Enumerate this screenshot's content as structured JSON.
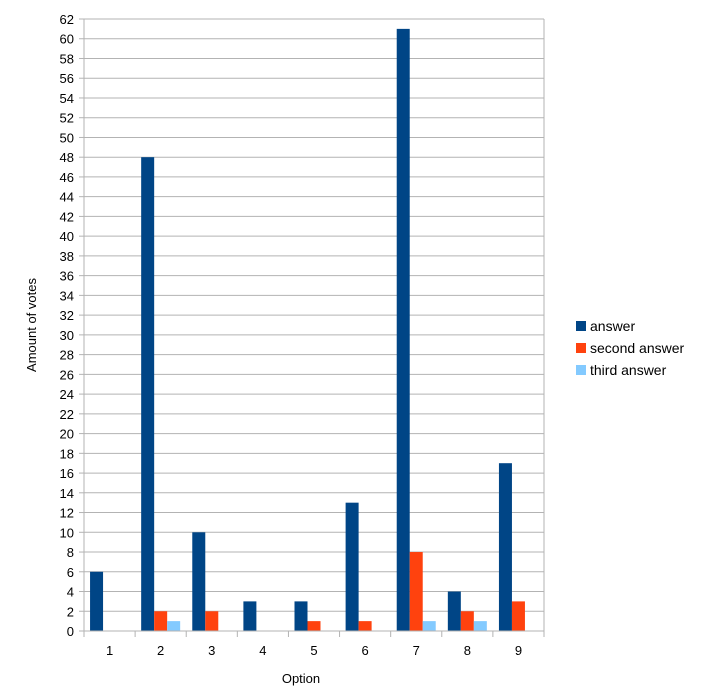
{
  "chart_data": {
    "type": "bar",
    "title": "",
    "xlabel": "Option",
    "ylabel": "Amount of votes",
    "categories": [
      "1",
      "2",
      "3",
      "4",
      "5",
      "6",
      "7",
      "8",
      "9"
    ],
    "series": [
      {
        "name": "answer",
        "color": "#004586",
        "values": [
          6,
          48,
          10,
          3,
          3,
          13,
          61,
          4,
          17
        ]
      },
      {
        "name": "second answer",
        "color": "#ff420e",
        "values": [
          0,
          2,
          2,
          0,
          1,
          1,
          8,
          2,
          3
        ]
      },
      {
        "name": "third answer",
        "color": "#83caff",
        "values": [
          0,
          1,
          0,
          0,
          0,
          0,
          1,
          1,
          0
        ]
      }
    ],
    "ylim": [
      0,
      62
    ],
    "ytick_step": 2,
    "grid": true,
    "legend_position": "right"
  }
}
